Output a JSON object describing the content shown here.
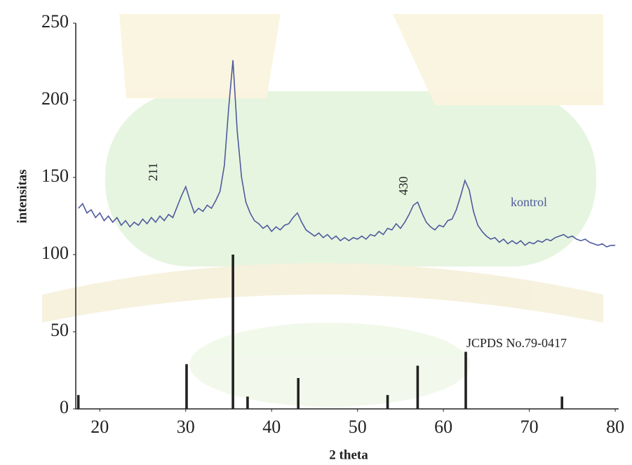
{
  "chart_data": {
    "type": "line",
    "xlabel": "2 theta",
    "ylabel": "intensitas",
    "xlim": [
      17.2,
      80.4
    ],
    "ylim": [
      0,
      250
    ],
    "xticks": [
      20,
      30,
      40,
      50,
      60,
      70,
      80
    ],
    "yticks": [
      0,
      50,
      100,
      150,
      200,
      250
    ],
    "x": [
      17.5,
      18,
      18.5,
      19,
      19.5,
      20,
      20.5,
      21,
      21.5,
      22,
      22.5,
      23,
      23.5,
      24,
      24.5,
      25,
      25.5,
      26,
      26.5,
      27,
      27.5,
      28,
      28.5,
      29,
      29.5,
      30,
      30.5,
      31,
      31.5,
      32,
      32.5,
      33,
      33.5,
      34,
      34.5,
      35,
      35.5,
      36,
      36.5,
      37,
      37.5,
      38,
      38.5,
      39,
      39.5,
      40,
      40.5,
      41,
      41.5,
      42,
      42.5,
      43,
      43.5,
      44,
      44.5,
      45,
      45.5,
      46,
      46.5,
      47,
      47.5,
      48,
      48.5,
      49,
      49.5,
      50,
      50.5,
      51,
      51.5,
      52,
      52.5,
      53,
      53.5,
      54,
      54.5,
      55,
      55.5,
      56,
      56.5,
      57,
      57.5,
      58,
      58.5,
      59,
      59.5,
      60,
      60.5,
      61,
      61.5,
      62,
      62.5,
      63,
      63.5,
      64,
      64.5,
      65,
      65.5,
      66,
      66.5,
      67,
      67.5,
      68,
      68.5,
      69,
      69.5,
      70,
      70.5,
      71,
      71.5,
      72,
      72.5,
      73,
      73.5,
      74,
      74.5,
      75,
      75.5,
      76,
      76.5,
      77,
      77.5,
      78,
      78.5,
      79,
      79.5,
      80
    ],
    "series": [
      {
        "name": "kontrol",
        "color": "#4f5a9c",
        "values": [
          130,
          133,
          127,
          129,
          124,
          127,
          122,
          125,
          121,
          124,
          119,
          122,
          118,
          121,
          119,
          123,
          120,
          124,
          121,
          125,
          122,
          126,
          124,
          131,
          138,
          144,
          135,
          127,
          130,
          128,
          132,
          130,
          135,
          141,
          158,
          195,
          226,
          180,
          150,
          134,
          127,
          122,
          120,
          117,
          119,
          115,
          118,
          116,
          119,
          120,
          124,
          127,
          121,
          116,
          114,
          112,
          114,
          111,
          113,
          110,
          112,
          109,
          111,
          109,
          111,
          110,
          112,
          110,
          113,
          112,
          115,
          113,
          117,
          116,
          120,
          117,
          121,
          126,
          132,
          134,
          127,
          121,
          118,
          116,
          119,
          118,
          122,
          123,
          129,
          138,
          148,
          142,
          128,
          119,
          115,
          112,
          110,
          111,
          108,
          110,
          107,
          109,
          107,
          109,
          106,
          108,
          107,
          109,
          108,
          110,
          109,
          111,
          112,
          113,
          111,
          112,
          110,
          109,
          110,
          108,
          107,
          106,
          107,
          105,
          106,
          106
        ]
      }
    ],
    "reference": {
      "name": "JCPDS No.79-0417",
      "color": "#222222",
      "x": [
        17.5,
        30.1,
        35.5,
        37.2,
        43.1,
        53.5,
        57.0,
        62.6,
        73.8
      ],
      "values": [
        9,
        29,
        100,
        8,
        20,
        9,
        28,
        37,
        8
      ]
    },
    "annotations": [
      "211",
      "430"
    ]
  }
}
